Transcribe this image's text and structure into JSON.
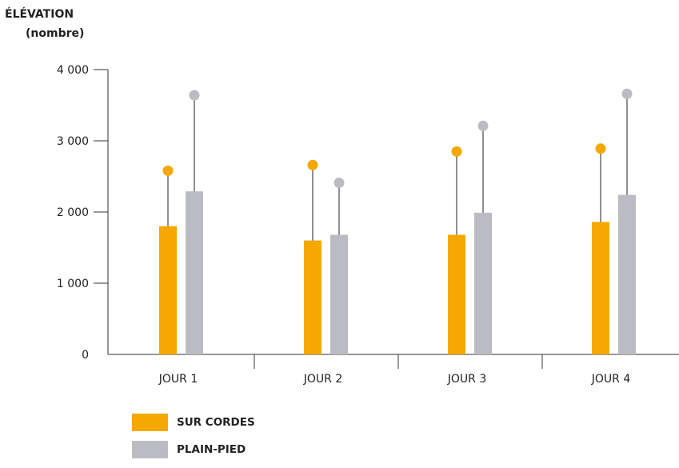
{
  "chart_data": {
    "type": "bar",
    "ylabel_lines": [
      "ÉLÉVATION",
      "(nombre)"
    ],
    "xlabel": "",
    "ylim": [
      0,
      4000
    ],
    "yticks": [
      0,
      1000,
      2000,
      3000,
      4000
    ],
    "ytick_labels": [
      "0",
      "1 000",
      "2 000",
      "3 000",
      "4 000"
    ],
    "categories": [
      "JOUR 1",
      "JOUR 2",
      "JOUR 3",
      "JOUR 4"
    ],
    "series": [
      {
        "name": "SUR CORDES",
        "color": "#F5A800",
        "values": [
          1800,
          1600,
          1680,
          1860
        ],
        "error_top": [
          2580,
          2660,
          2850,
          2890
        ]
      },
      {
        "name": "PLAIN-PIED",
        "color": "#BBBCC3",
        "values": [
          2290,
          1680,
          1990,
          2240
        ],
        "error_top": [
          3640,
          2410,
          3210,
          3660
        ]
      }
    ],
    "grid": false,
    "legend_position": "bottom-left"
  }
}
